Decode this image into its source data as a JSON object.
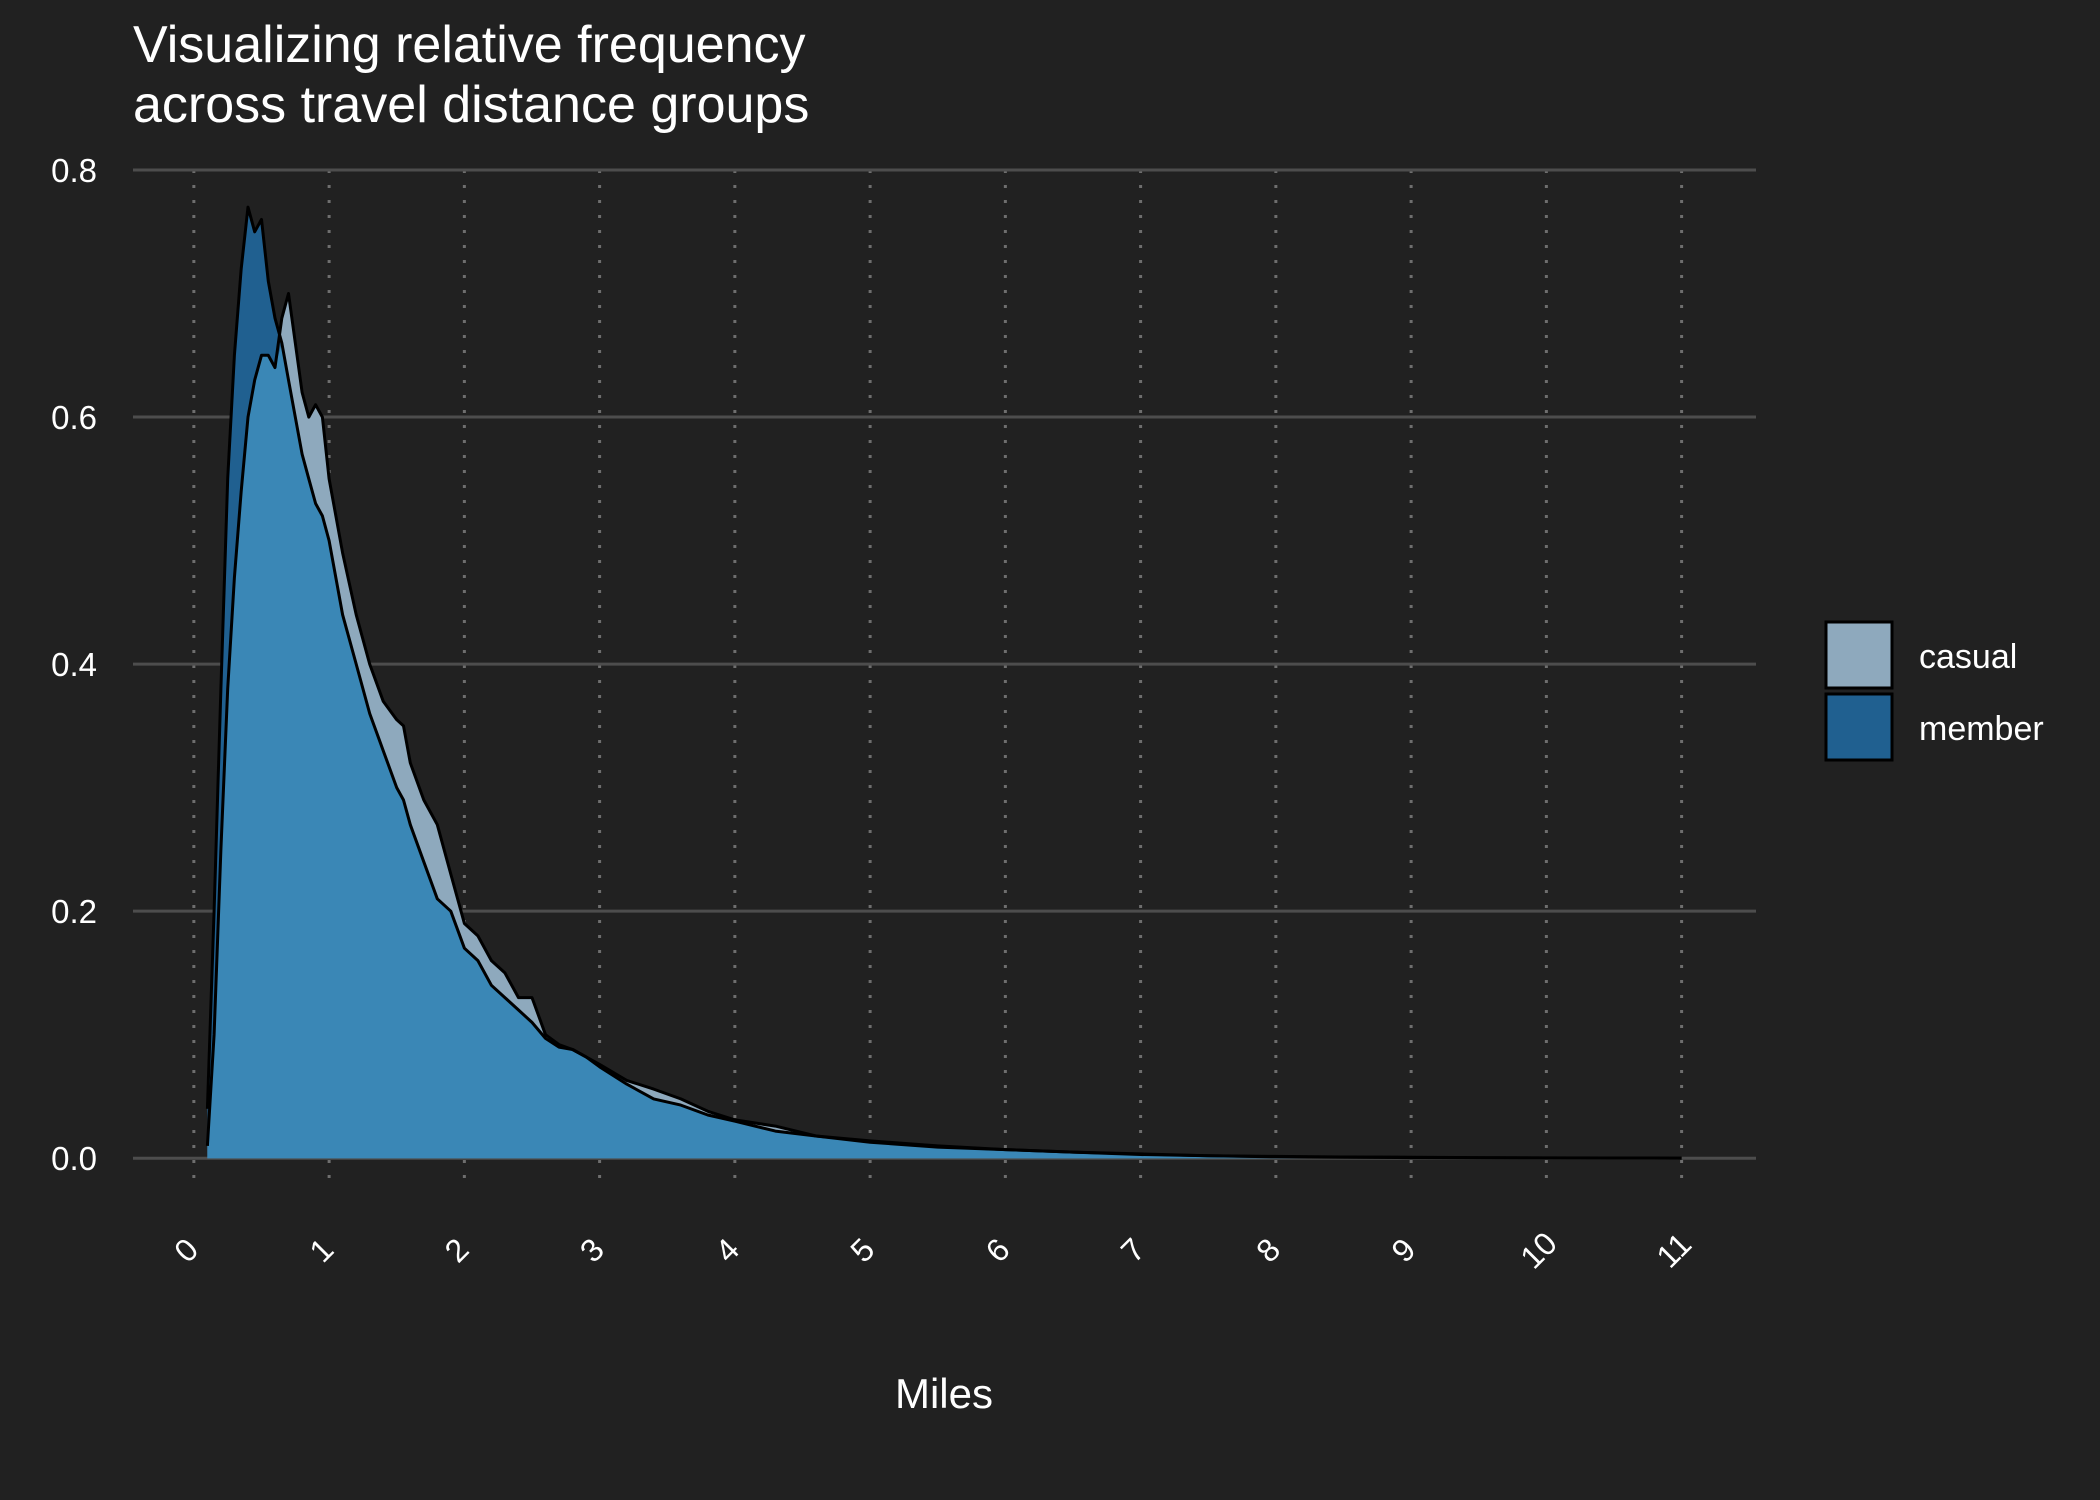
{
  "colors": {
    "background": "#212121",
    "grid_major": "#4d4d4d",
    "grid_minor": "#6e6e6e",
    "casual_fill": "#8ea9bd",
    "member_fill": "#206090",
    "overlap_fill": "#3a87b6",
    "outline": "#000000",
    "text": "#ffffff"
  },
  "chart_data": {
    "type": "area",
    "subtype": "density",
    "title": [
      "Visualizing relative frequency",
      "across travel distance groups"
    ],
    "xlabel": "Miles",
    "ylabel": "",
    "xlim": [
      -0.45,
      11.55
    ],
    "ylim": [
      -0.016,
      0.8
    ],
    "x_ticks": [
      0,
      1,
      2,
      3,
      4,
      5,
      6,
      7,
      8,
      9,
      10,
      11
    ],
    "x_tick_labels": [
      "0",
      "1",
      "2",
      "3",
      "4",
      "5",
      "6",
      "7",
      "8",
      "9",
      "10",
      "11"
    ],
    "y_ticks": [
      0.0,
      0.2,
      0.4,
      0.6,
      0.8
    ],
    "y_tick_labels": [
      "0.0",
      "0.2",
      "0.4",
      "0.6",
      "0.8"
    ],
    "grid": true,
    "legend": {
      "position": "right",
      "entries": [
        "casual",
        "member"
      ]
    },
    "series": [
      {
        "name": "casual",
        "x": [
          0.1,
          0.15,
          0.2,
          0.25,
          0.3,
          0.35,
          0.4,
          0.45,
          0.5,
          0.55,
          0.6,
          0.65,
          0.7,
          0.75,
          0.8,
          0.85,
          0.9,
          0.95,
          1.0,
          1.1,
          1.2,
          1.3,
          1.4,
          1.5,
          1.55,
          1.6,
          1.7,
          1.8,
          1.9,
          2.0,
          2.1,
          2.2,
          2.3,
          2.4,
          2.5,
          2.6,
          2.7,
          2.8,
          2.9,
          3.0,
          3.2,
          3.4,
          3.6,
          3.8,
          4.0,
          4.3,
          4.6,
          5.0,
          5.5,
          6.0,
          6.5,
          7.0,
          7.5,
          8.0,
          8.5,
          9.0,
          9.5,
          10.0,
          10.5,
          11.0
        ],
        "values": [
          0.01,
          0.1,
          0.25,
          0.38,
          0.47,
          0.54,
          0.6,
          0.63,
          0.65,
          0.65,
          0.64,
          0.68,
          0.7,
          0.66,
          0.62,
          0.6,
          0.61,
          0.6,
          0.55,
          0.49,
          0.44,
          0.4,
          0.37,
          0.355,
          0.35,
          0.32,
          0.29,
          0.27,
          0.23,
          0.19,
          0.18,
          0.16,
          0.15,
          0.13,
          0.13,
          0.1,
          0.092,
          0.088,
          0.082,
          0.076,
          0.063,
          0.056,
          0.048,
          0.038,
          0.031,
          0.026,
          0.018,
          0.013,
          0.009,
          0.007,
          0.005,
          0.003,
          0.002,
          0.0015,
          0.001,
          0.0008,
          0.0005,
          0.0003,
          0.0002,
          0.0001
        ]
      },
      {
        "name": "member",
        "x": [
          0.1,
          0.15,
          0.2,
          0.25,
          0.3,
          0.35,
          0.4,
          0.45,
          0.5,
          0.55,
          0.6,
          0.65,
          0.7,
          0.75,
          0.8,
          0.85,
          0.9,
          0.95,
          1.0,
          1.1,
          1.2,
          1.3,
          1.4,
          1.5,
          1.55,
          1.6,
          1.7,
          1.8,
          1.9,
          2.0,
          2.1,
          2.2,
          2.3,
          2.4,
          2.5,
          2.6,
          2.7,
          2.8,
          2.9,
          3.0,
          3.2,
          3.4,
          3.6,
          3.8,
          4.0,
          4.3,
          4.6,
          5.0,
          5.5,
          6.0,
          6.5,
          7.0,
          7.5,
          8.0,
          8.5,
          9.0,
          9.5,
          10.0,
          10.5,
          11.0
        ],
        "values": [
          0.04,
          0.2,
          0.38,
          0.55,
          0.65,
          0.72,
          0.77,
          0.75,
          0.76,
          0.71,
          0.68,
          0.66,
          0.63,
          0.6,
          0.57,
          0.55,
          0.53,
          0.52,
          0.5,
          0.44,
          0.4,
          0.36,
          0.33,
          0.3,
          0.29,
          0.27,
          0.24,
          0.21,
          0.2,
          0.17,
          0.16,
          0.14,
          0.13,
          0.12,
          0.11,
          0.097,
          0.09,
          0.088,
          0.082,
          0.074,
          0.06,
          0.048,
          0.043,
          0.035,
          0.03,
          0.022,
          0.018,
          0.014,
          0.01,
          0.007,
          0.005,
          0.0035,
          0.002,
          0.0012,
          0.0008,
          0.0005,
          0.0003,
          0.0002,
          0.0001,
          0.0001
        ]
      }
    ]
  }
}
